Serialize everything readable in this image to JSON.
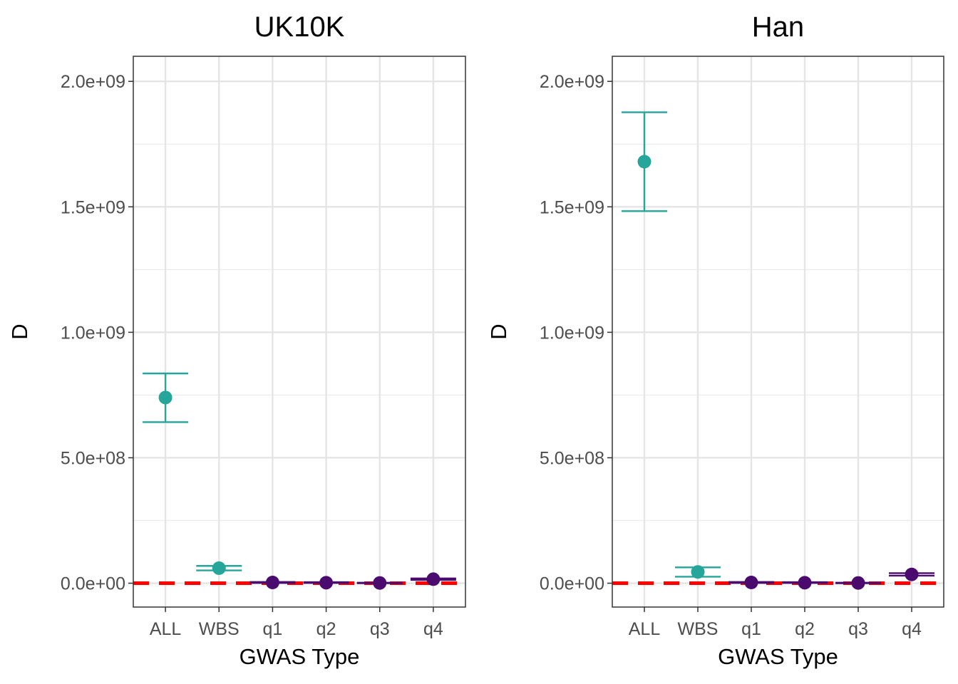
{
  "chart_data": [
    {
      "type": "scatter",
      "title": "UK10K",
      "xlabel": "GWAS Type",
      "ylabel": "D",
      "categories": [
        "ALL",
        "WBS",
        "q1",
        "q2",
        "q3",
        "q4"
      ],
      "ylim": [
        -95000000,
        2100000000
      ],
      "yticks": [
        0,
        500000000,
        1000000000,
        1500000000,
        2000000000
      ],
      "ytick_labels": [
        "0.0e+00",
        "5.0e+08",
        "1.0e+09",
        "1.5e+09",
        "2.0e+09"
      ],
      "grid": true,
      "reference_line": {
        "y": 0,
        "color": "#ff0000",
        "style": "dashed"
      },
      "points": [
        {
          "x": "ALL",
          "y": 740000000,
          "lo": 642000000,
          "hi": 836000000,
          "color": "#26a69a"
        },
        {
          "x": "WBS",
          "y": 60000000,
          "lo": 51000000,
          "hi": 69000000,
          "color": "#26a69a"
        },
        {
          "x": "q1",
          "y": 3000000,
          "lo": 1000000,
          "hi": 5000000,
          "color": "#4b0a6e"
        },
        {
          "x": "q2",
          "y": 2000000,
          "lo": 1000000,
          "hi": 4000000,
          "color": "#4b0a6e"
        },
        {
          "x": "q3",
          "y": 1000000,
          "lo": 0,
          "hi": 2000000,
          "color": "#4b0a6e"
        },
        {
          "x": "q4",
          "y": 16000000,
          "lo": 13000000,
          "hi": 19000000,
          "color": "#4b0a6e"
        }
      ]
    },
    {
      "type": "scatter",
      "title": "Han",
      "xlabel": "GWAS Type",
      "ylabel": "D",
      "categories": [
        "ALL",
        "WBS",
        "q1",
        "q2",
        "q3",
        "q4"
      ],
      "ylim": [
        -95000000,
        2100000000
      ],
      "yticks": [
        0,
        500000000,
        1000000000,
        1500000000,
        2000000000
      ],
      "ytick_labels": [
        "0.0e+00",
        "5.0e+08",
        "1.0e+09",
        "1.5e+09",
        "2.0e+09"
      ],
      "grid": true,
      "reference_line": {
        "y": 0,
        "color": "#ff0000",
        "style": "dashed"
      },
      "points": [
        {
          "x": "ALL",
          "y": 1680000000,
          "lo": 1483000000,
          "hi": 1877000000,
          "color": "#26a69a"
        },
        {
          "x": "WBS",
          "y": 45000000,
          "lo": 26000000,
          "hi": 63000000,
          "color": "#26a69a"
        },
        {
          "x": "q1",
          "y": 3000000,
          "lo": 1000000,
          "hi": 5000000,
          "color": "#4b0a6e"
        },
        {
          "x": "q2",
          "y": 2000000,
          "lo": 1000000,
          "hi": 4000000,
          "color": "#4b0a6e"
        },
        {
          "x": "q3",
          "y": 1000000,
          "lo": 0,
          "hi": 2000000,
          "color": "#4b0a6e"
        },
        {
          "x": "q4",
          "y": 35000000,
          "lo": 30000000,
          "hi": 40000000,
          "color": "#4b0a6e"
        }
      ]
    }
  ]
}
